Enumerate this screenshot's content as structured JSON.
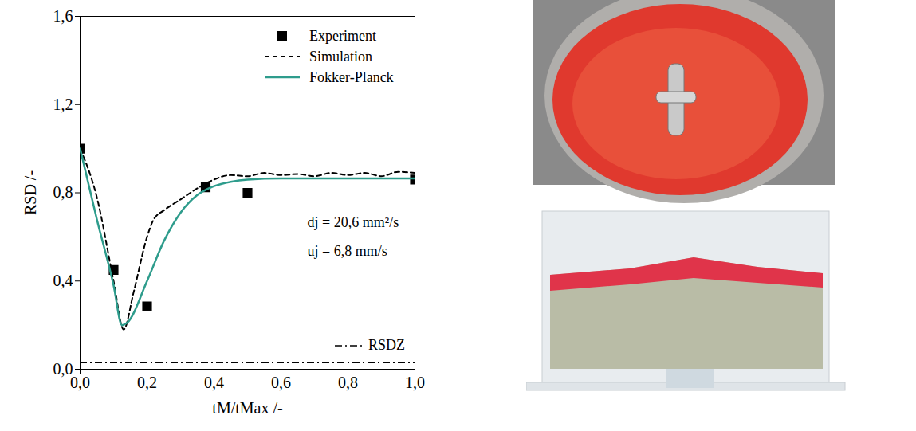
{
  "chart_data": {
    "type": "line",
    "xlabel": "tM/tMax /-",
    "ylabel": "RSD /-",
    "xlim": [
      0,
      1
    ],
    "ylim": [
      0,
      1.6
    ],
    "xticks": [
      {
        "value": 0,
        "label": "0,0"
      },
      {
        "value": 0.2,
        "label": "0,2"
      },
      {
        "value": 0.4,
        "label": "0,4"
      },
      {
        "value": 0.6,
        "label": "0,6"
      },
      {
        "value": 0.8,
        "label": "0,8"
      },
      {
        "value": 1,
        "label": "1,0"
      }
    ],
    "yticks": [
      {
        "value": 0,
        "label": "0,0"
      },
      {
        "value": 0.4,
        "label": "0,4"
      },
      {
        "value": 0.8,
        "label": "0,8"
      },
      {
        "value": 1.2,
        "label": "1,2"
      },
      {
        "value": 1.6,
        "label": "1,6"
      }
    ],
    "legend": "upper right",
    "series": [
      {
        "name": "Experiment",
        "type": "scatter",
        "marker": "square",
        "color": "#000000",
        "x": [
          0,
          0.1,
          0.2,
          0.375,
          0.5,
          1.0
        ],
        "values": [
          1.0,
          0.45,
          0.285,
          0.825,
          0.8,
          0.86
        ]
      },
      {
        "name": "Simulation",
        "type": "line",
        "line_style": "dashed",
        "color": "#000000",
        "x": [
          0,
          0.05,
          0.1,
          0.13,
          0.16,
          0.2,
          0.22,
          0.25,
          0.3,
          0.35,
          0.4,
          0.45,
          0.5,
          0.55,
          0.6,
          0.65,
          0.7,
          0.75,
          0.8,
          0.85,
          0.9,
          0.95,
          1.0
        ],
        "values": [
          1.0,
          0.78,
          0.4,
          0.18,
          0.35,
          0.6,
          0.68,
          0.72,
          0.77,
          0.82,
          0.86,
          0.88,
          0.875,
          0.89,
          0.88,
          0.885,
          0.875,
          0.89,
          0.88,
          0.89,
          0.875,
          0.895,
          0.89
        ]
      },
      {
        "name": "Fokker-Planck",
        "type": "line",
        "line_style": "solid",
        "color": "#2e9c8c",
        "x": [
          0,
          0.05,
          0.1,
          0.125,
          0.14,
          0.2,
          0.25,
          0.3,
          0.35,
          0.4,
          0.45,
          0.5,
          0.6,
          1.0
        ],
        "values": [
          1.0,
          0.68,
          0.38,
          0.2,
          0.21,
          0.4,
          0.58,
          0.71,
          0.79,
          0.83,
          0.85,
          0.86,
          0.865,
          0.865
        ]
      }
    ],
    "reference_line": {
      "name": "RSDZ",
      "value": 0.03,
      "line_style": "dashdot",
      "color": "#000000"
    },
    "annotations": [
      "dj = 20,6 mm²/s",
      "uj = 6,8 mm/s"
    ]
  }
}
